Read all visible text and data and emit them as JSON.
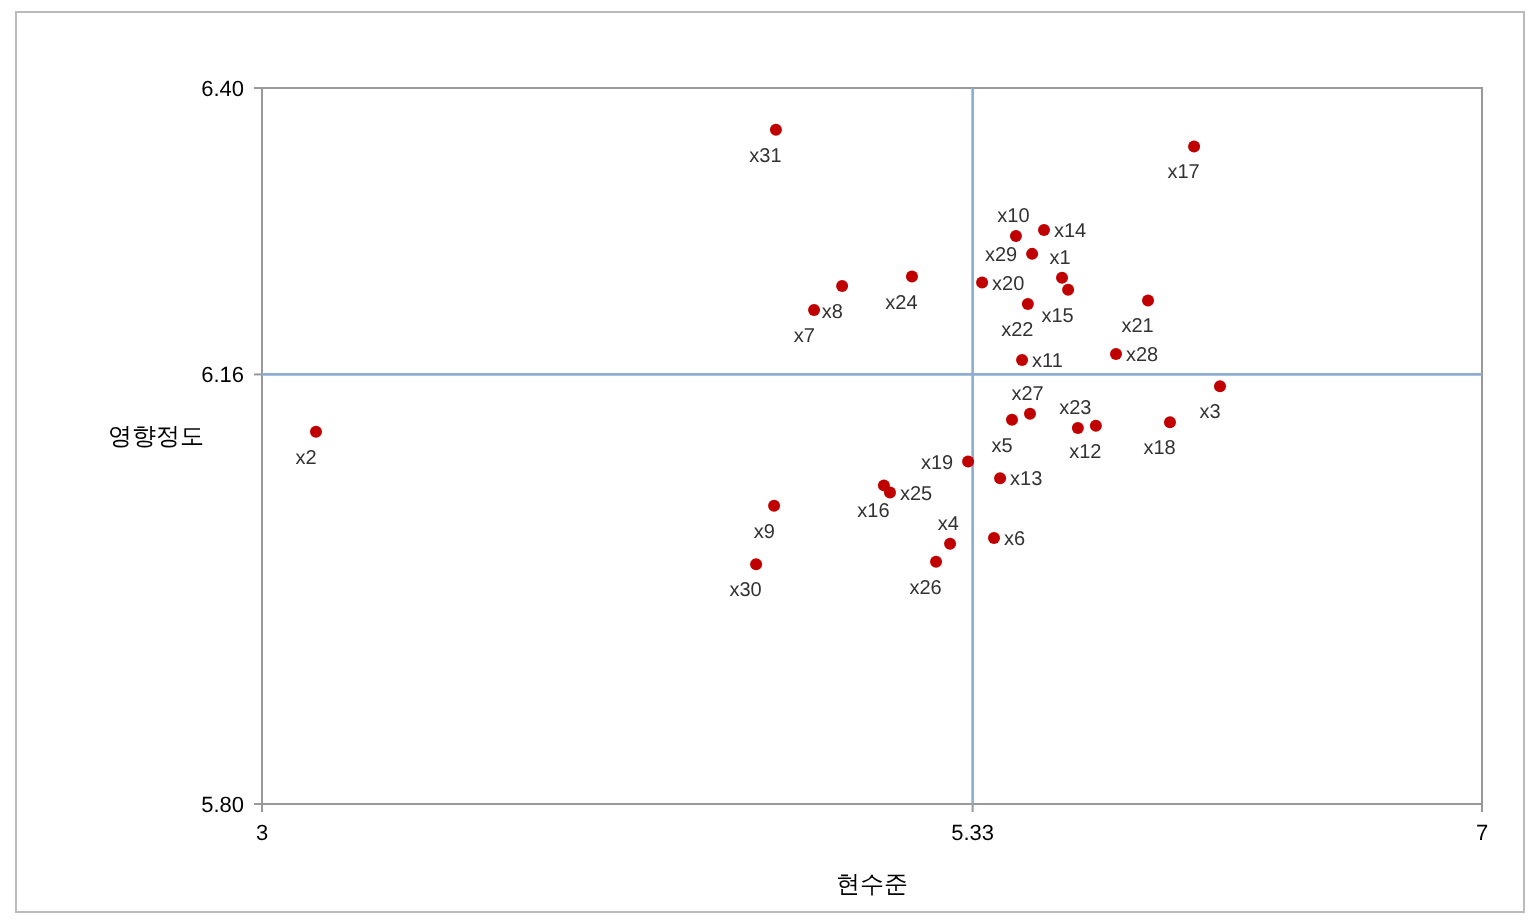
{
  "chart_data": {
    "type": "scatter",
    "xlabel": "현수준",
    "ylabel": "영향정도",
    "xlim": [
      3,
      7
    ],
    "xticks": [
      3,
      5.33,
      7
    ],
    "ylim": [
      5.8,
      6.4
    ],
    "yticks": [
      {
        "value": 5.8,
        "label": "5.80"
      },
      6.16,
      {
        "value": 6.4,
        "label": "6.40"
      }
    ],
    "marker": "circle",
    "ref_lines": [
      {
        "axis": "x",
        "value": 5.33,
        "color": "#8eaccd"
      },
      {
        "axis": "y",
        "value": 6.16,
        "color": "#8eaccd"
      }
    ],
    "series": [
      {
        "color": "#c00000",
        "x": [
          5.623,
          3.177,
          6.141,
          5.256,
          5.459,
          5.4,
          4.81,
          4.902,
          4.679,
          5.472,
          5.492,
          5.734,
          5.42,
          5.564,
          5.643,
          5.039,
          6.056,
          5.977,
          5.315,
          5.361,
          5.905,
          5.511,
          5.675,
          5.131,
          5.059,
          5.21,
          5.518,
          5.8,
          5.525,
          4.62,
          4.685
        ],
        "values": [
          6.241,
          6.112,
          6.15,
          6.018,
          6.122,
          6.023,
          6.214,
          6.234,
          6.05,
          6.276,
          6.172,
          6.117,
          6.073,
          6.281,
          6.231,
          6.067,
          6.351,
          6.12,
          6.087,
          6.237,
          6.222,
          6.219,
          6.115,
          6.242,
          6.061,
          6.003,
          6.127,
          6.177,
          6.261,
          6.001,
          6.365
        ]
      }
    ],
    "annotations": [
      {
        "text": "x1",
        "x": 5.623,
        "y": 6.241
      },
      {
        "text": "x2",
        "x": 3.177,
        "y": 6.112
      },
      {
        "text": "x3",
        "x": 6.141,
        "y": 6.15
      },
      {
        "text": "x4",
        "x": 5.256,
        "y": 6.018
      },
      {
        "text": "x5",
        "x": 5.459,
        "y": 6.122
      },
      {
        "text": "x6",
        "x": 5.4,
        "y": 6.023
      },
      {
        "text": "x7",
        "x": 4.81,
        "y": 6.214
      },
      {
        "text": "x8",
        "x": 4.902,
        "y": 6.234
      },
      {
        "text": "x9",
        "x": 4.679,
        "y": 6.05
      },
      {
        "text": "x10",
        "x": 5.472,
        "y": 6.276
      },
      {
        "text": "x11",
        "x": 5.492,
        "y": 6.172
      },
      {
        "text": "x12",
        "x": 5.734,
        "y": 6.117
      },
      {
        "text": "x13",
        "x": 5.42,
        "y": 6.073
      },
      {
        "text": "x14",
        "x": 5.564,
        "y": 6.281
      },
      {
        "text": "x15",
        "x": 5.643,
        "y": 6.231
      },
      {
        "text": "x16",
        "x": 5.039,
        "y": 6.067
      },
      {
        "text": "x17",
        "x": 6.056,
        "y": 6.351
      },
      {
        "text": "x18",
        "x": 5.977,
        "y": 6.12
      },
      {
        "text": "x19",
        "x": 5.315,
        "y": 6.087
      },
      {
        "text": "x20",
        "x": 5.361,
        "y": 6.237
      },
      {
        "text": "x21",
        "x": 5.905,
        "y": 6.222
      },
      {
        "text": "x22",
        "x": 5.511,
        "y": 6.219
      },
      {
        "text": "x23",
        "x": 5.675,
        "y": 6.115
      },
      {
        "text": "x24",
        "x": 5.131,
        "y": 6.242
      },
      {
        "text": "x25",
        "x": 5.059,
        "y": 6.061
      },
      {
        "text": "x26",
        "x": 5.21,
        "y": 6.003
      },
      {
        "text": "x27",
        "x": 5.518,
        "y": 6.127
      },
      {
        "text": "x28",
        "x": 5.8,
        "y": 6.177
      },
      {
        "text": "x29",
        "x": 5.525,
        "y": 6.261
      },
      {
        "text": "x30",
        "x": 4.62,
        "y": 6.001
      },
      {
        "text": "x31",
        "x": 4.685,
        "y": 6.365
      }
    ]
  }
}
